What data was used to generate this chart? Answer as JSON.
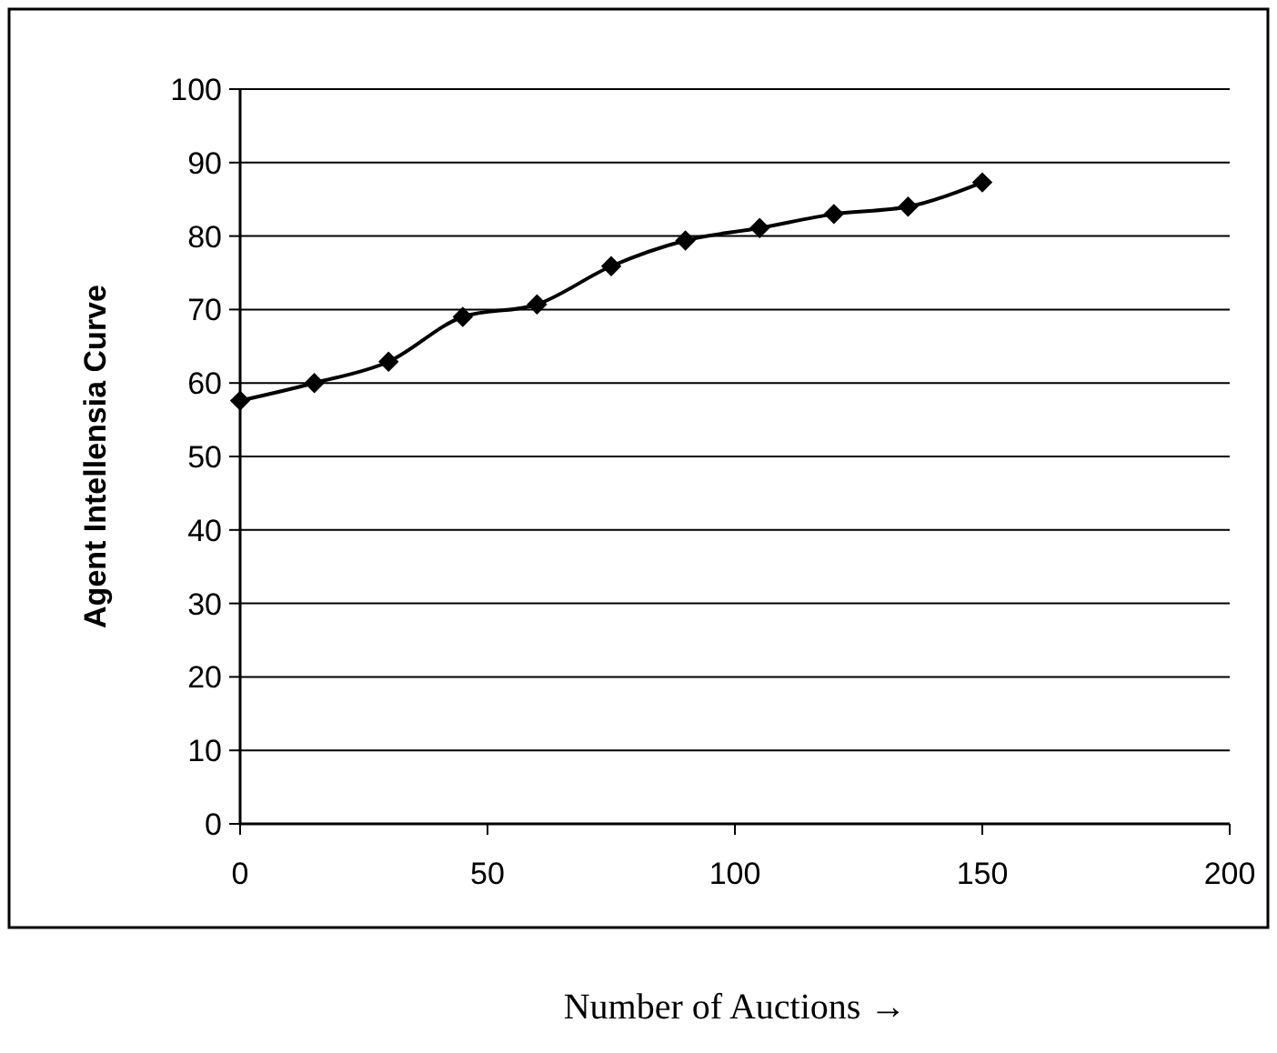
{
  "chart_data": {
    "type": "line",
    "xlabel": "Number of Auctions →",
    "ylabel": "Agent Intellensia Curve",
    "x": [
      0,
      15,
      30,
      45,
      60,
      75,
      90,
      105,
      120,
      135,
      150
    ],
    "series": [
      {
        "color": "#000000",
        "values": [
          57.6,
          60,
          62.9,
          69,
          70.7,
          75.9,
          79.4,
          81.1,
          83,
          84,
          87.3
        ]
      }
    ],
    "xlim": [
      0,
      200
    ],
    "xticks": [
      0,
      50,
      100,
      150,
      200
    ],
    "ylim": [
      0,
      100
    ],
    "yticks": [
      0,
      10,
      20,
      30,
      40,
      50,
      60,
      70,
      80,
      90,
      100
    ],
    "grid": "y",
    "marker": "diamond",
    "line_style": "solid"
  }
}
